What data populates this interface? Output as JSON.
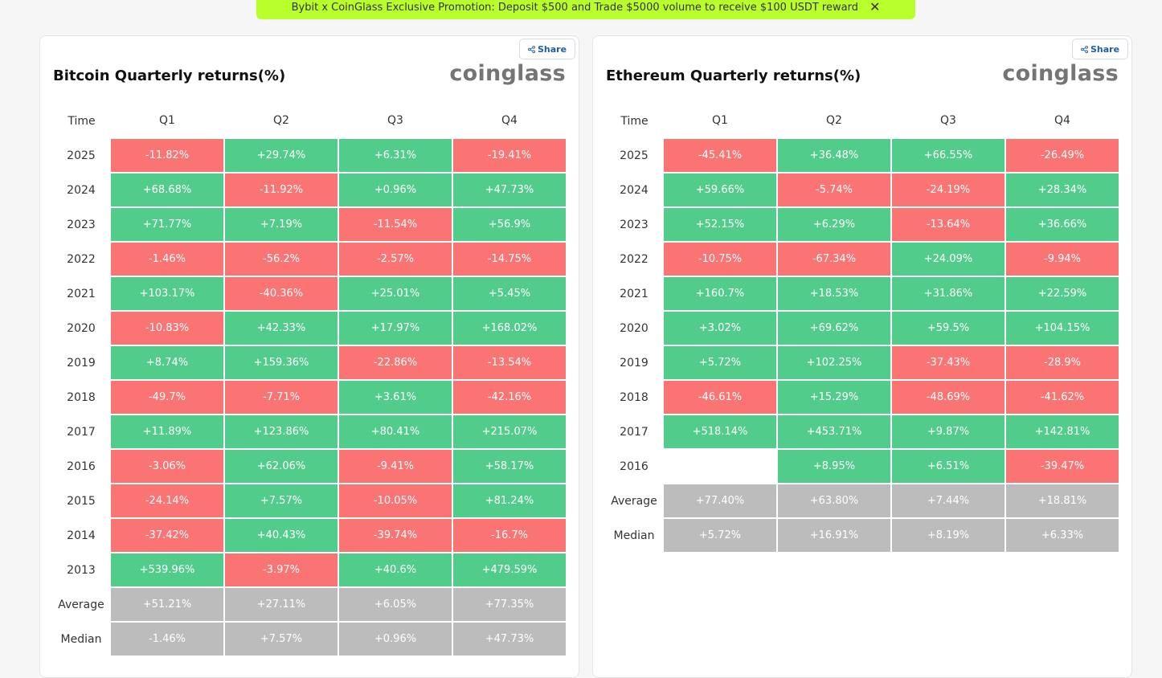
{
  "promo": {
    "text": "Bybit x CoinGlass Exclusive Promotion: Deposit $500 and Trade $5000 volume to receive $100 USDT reward",
    "close": "✕"
  },
  "colors": {
    "positive": "#52cc8a",
    "negative": "#fb7474",
    "summary": "#bcbcbc",
    "promo": "#b9ff2b"
  },
  "tables": [
    {
      "share_label": "Share",
      "title": "Bitcoin Quarterly returns(%)",
      "logo": "coinglass",
      "headers": [
        "Time",
        "Q1",
        "Q2",
        "Q3",
        "Q4"
      ],
      "rows": [
        {
          "label": "2025",
          "cells": [
            "-11.82%",
            "+29.74%",
            "+6.31%",
            "-19.41%"
          ]
        },
        {
          "label": "2024",
          "cells": [
            "+68.68%",
            "-11.92%",
            "+0.96%",
            "+47.73%"
          ]
        },
        {
          "label": "2023",
          "cells": [
            "+71.77%",
            "+7.19%",
            "-11.54%",
            "+56.9%"
          ]
        },
        {
          "label": "2022",
          "cells": [
            "-1.46%",
            "-56.2%",
            "-2.57%",
            "-14.75%"
          ]
        },
        {
          "label": "2021",
          "cells": [
            "+103.17%",
            "-40.36%",
            "+25.01%",
            "+5.45%"
          ]
        },
        {
          "label": "2020",
          "cells": [
            "-10.83%",
            "+42.33%",
            "+17.97%",
            "+168.02%"
          ]
        },
        {
          "label": "2019",
          "cells": [
            "+8.74%",
            "+159.36%",
            "-22.86%",
            "-13.54%"
          ]
        },
        {
          "label": "2018",
          "cells": [
            "-49.7%",
            "-7.71%",
            "+3.61%",
            "-42.16%"
          ]
        },
        {
          "label": "2017",
          "cells": [
            "+11.89%",
            "+123.86%",
            "+80.41%",
            "+215.07%"
          ]
        },
        {
          "label": "2016",
          "cells": [
            "-3.06%",
            "+62.06%",
            "-9.41%",
            "+58.17%"
          ]
        },
        {
          "label": "2015",
          "cells": [
            "-24.14%",
            "+7.57%",
            "-10.05%",
            "+81.24%"
          ]
        },
        {
          "label": "2014",
          "cells": [
            "-37.42%",
            "+40.43%",
            "-39.74%",
            "-16.7%"
          ]
        },
        {
          "label": "2013",
          "cells": [
            "+539.96%",
            "-3.97%",
            "+40.6%",
            "+479.59%"
          ]
        },
        {
          "label": "Average",
          "summary": true,
          "cells": [
            "+51.21%",
            "+27.11%",
            "+6.05%",
            "+77.35%"
          ]
        },
        {
          "label": "Median",
          "summary": true,
          "cells": [
            "-1.46%",
            "+7.57%",
            "+0.96%",
            "+47.73%"
          ]
        }
      ]
    },
    {
      "share_label": "Share",
      "title": "Ethereum Quarterly returns(%)",
      "logo": "coinglass",
      "headers": [
        "Time",
        "Q1",
        "Q2",
        "Q3",
        "Q4"
      ],
      "rows": [
        {
          "label": "2025",
          "cells": [
            "-45.41%",
            "+36.48%",
            "+66.55%",
            "-26.49%"
          ]
        },
        {
          "label": "2024",
          "cells": [
            "+59.66%",
            "-5.74%",
            "-24.19%",
            "+28.34%"
          ]
        },
        {
          "label": "2023",
          "cells": [
            "+52.15%",
            "+6.29%",
            "-13.64%",
            "+36.66%"
          ]
        },
        {
          "label": "2022",
          "cells": [
            "-10.75%",
            "-67.34%",
            "+24.09%",
            "-9.94%"
          ]
        },
        {
          "label": "2021",
          "cells": [
            "+160.7%",
            "+18.53%",
            "+31.86%",
            "+22.59%"
          ]
        },
        {
          "label": "2020",
          "cells": [
            "+3.02%",
            "+69.62%",
            "+59.5%",
            "+104.15%"
          ]
        },
        {
          "label": "2019",
          "cells": [
            "+5.72%",
            "+102.25%",
            "-37.43%",
            "-28.9%"
          ]
        },
        {
          "label": "2018",
          "cells": [
            "-46.61%",
            "+15.29%",
            "-48.69%",
            "-41.62%"
          ]
        },
        {
          "label": "2017",
          "cells": [
            "+518.14%",
            "+453.71%",
            "+9.87%",
            "+142.81%"
          ]
        },
        {
          "label": "2016",
          "cells": [
            "",
            "+8.95%",
            "+6.51%",
            "-39.47%"
          ]
        },
        {
          "label": "Average",
          "summary": true,
          "cells": [
            "+77.40%",
            "+63.80%",
            "+7.44%",
            "+18.81%"
          ]
        },
        {
          "label": "Median",
          "summary": true,
          "cells": [
            "+5.72%",
            "+16.91%",
            "+8.19%",
            "+6.33%"
          ]
        }
      ]
    }
  ]
}
